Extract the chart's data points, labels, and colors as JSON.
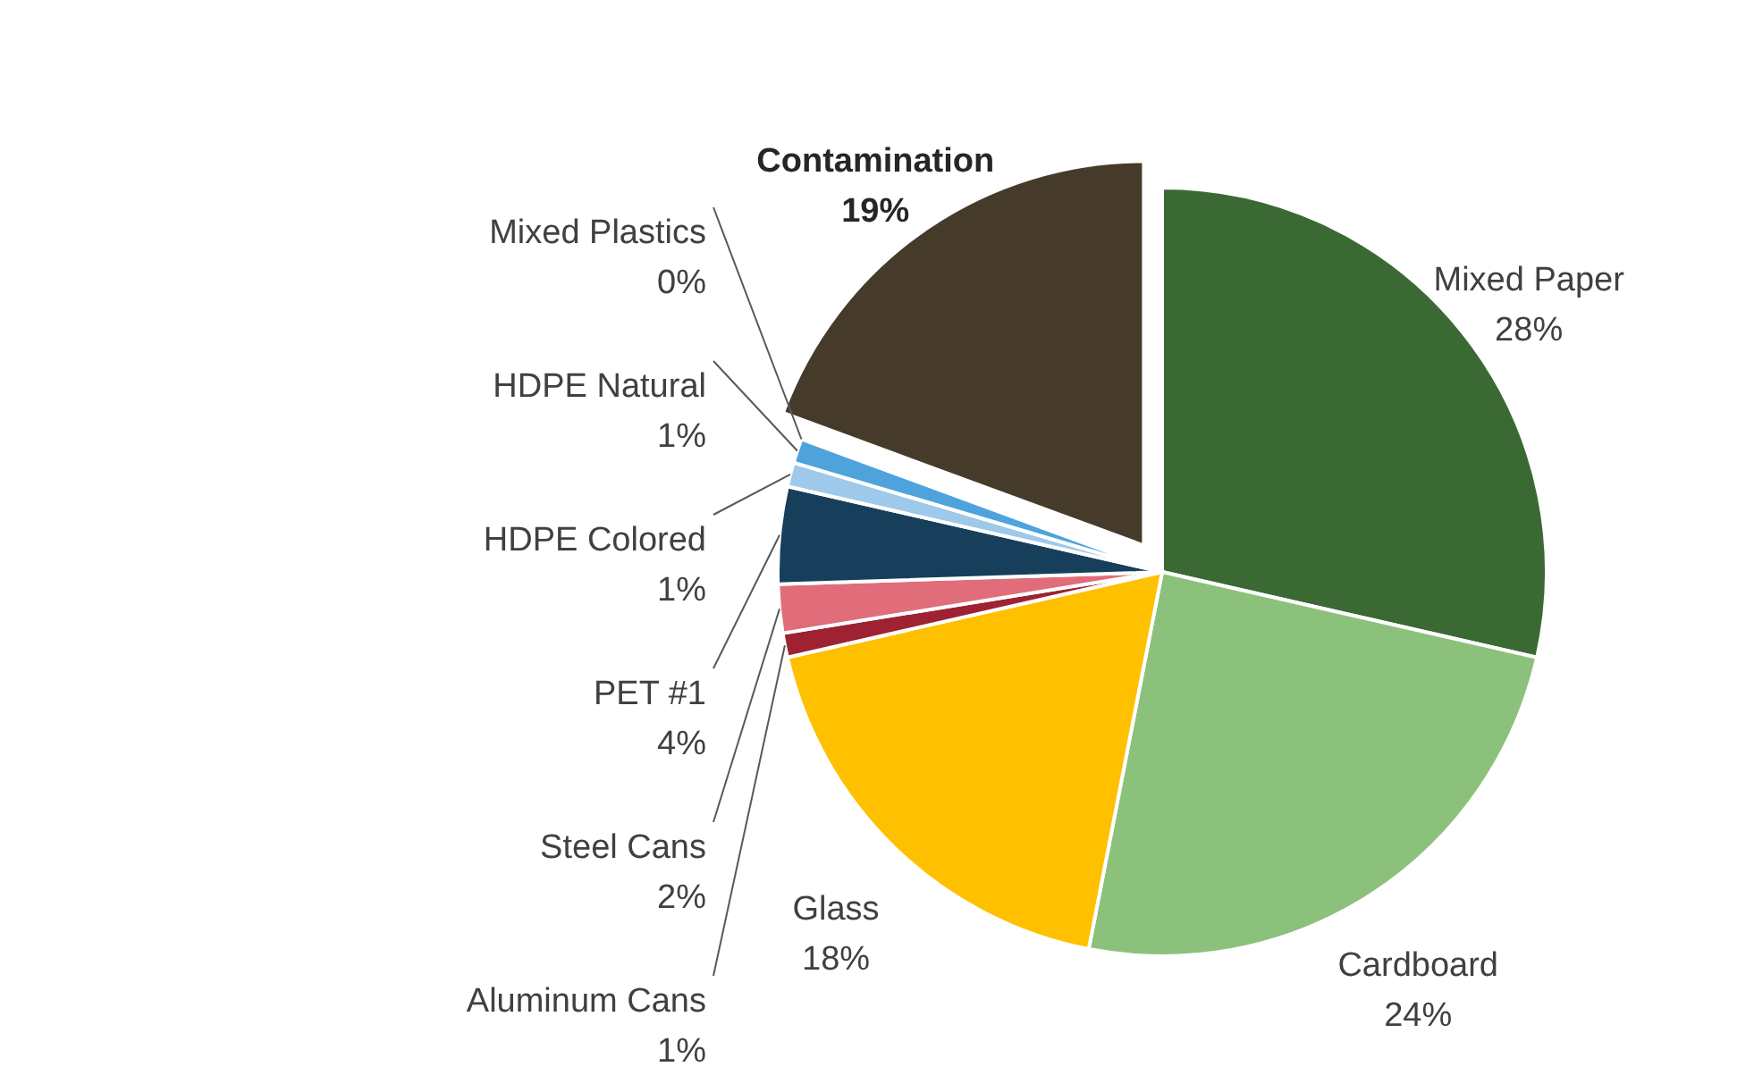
{
  "chart_data": {
    "type": "pie",
    "categories": [
      "Mixed Paper",
      "Cardboard",
      "Glass",
      "Aluminum Cans",
      "Steel Cans",
      "PET #1",
      "HDPE Colored",
      "HDPE Natural",
      "Mixed Plastics",
      "Contamination"
    ],
    "values": [
      28,
      24,
      18,
      1,
      2,
      4,
      1,
      1,
      0,
      19
    ],
    "value_labels": [
      "28%",
      "24%",
      "18%",
      "1%",
      "2%",
      "4%",
      "1%",
      "1%",
      "0%",
      "19%"
    ],
    "colors": [
      "#3b6934",
      "#8cc17b",
      "#ffc000",
      "#9e2232",
      "#e06d79",
      "#173f5c",
      "#9fc9ea",
      "#4ea3dc",
      "#d6e9f7",
      "#463b2a"
    ]
  }
}
